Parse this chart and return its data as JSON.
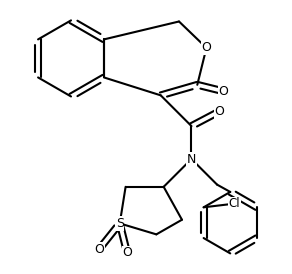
{
  "bg_color": "#ffffff",
  "line_color": "#000000",
  "figsize": [
    2.92,
    2.74
  ],
  "dpi": 100,
  "lw": 1.5,
  "font_size": 9,
  "atoms": {
    "O_lactone": "O",
    "O_carbonyl1": "O",
    "O_carbonyl2": "O",
    "N": "N",
    "S": "S",
    "Cl": "Cl",
    "O_s1": "O",
    "O_s2": "O"
  }
}
